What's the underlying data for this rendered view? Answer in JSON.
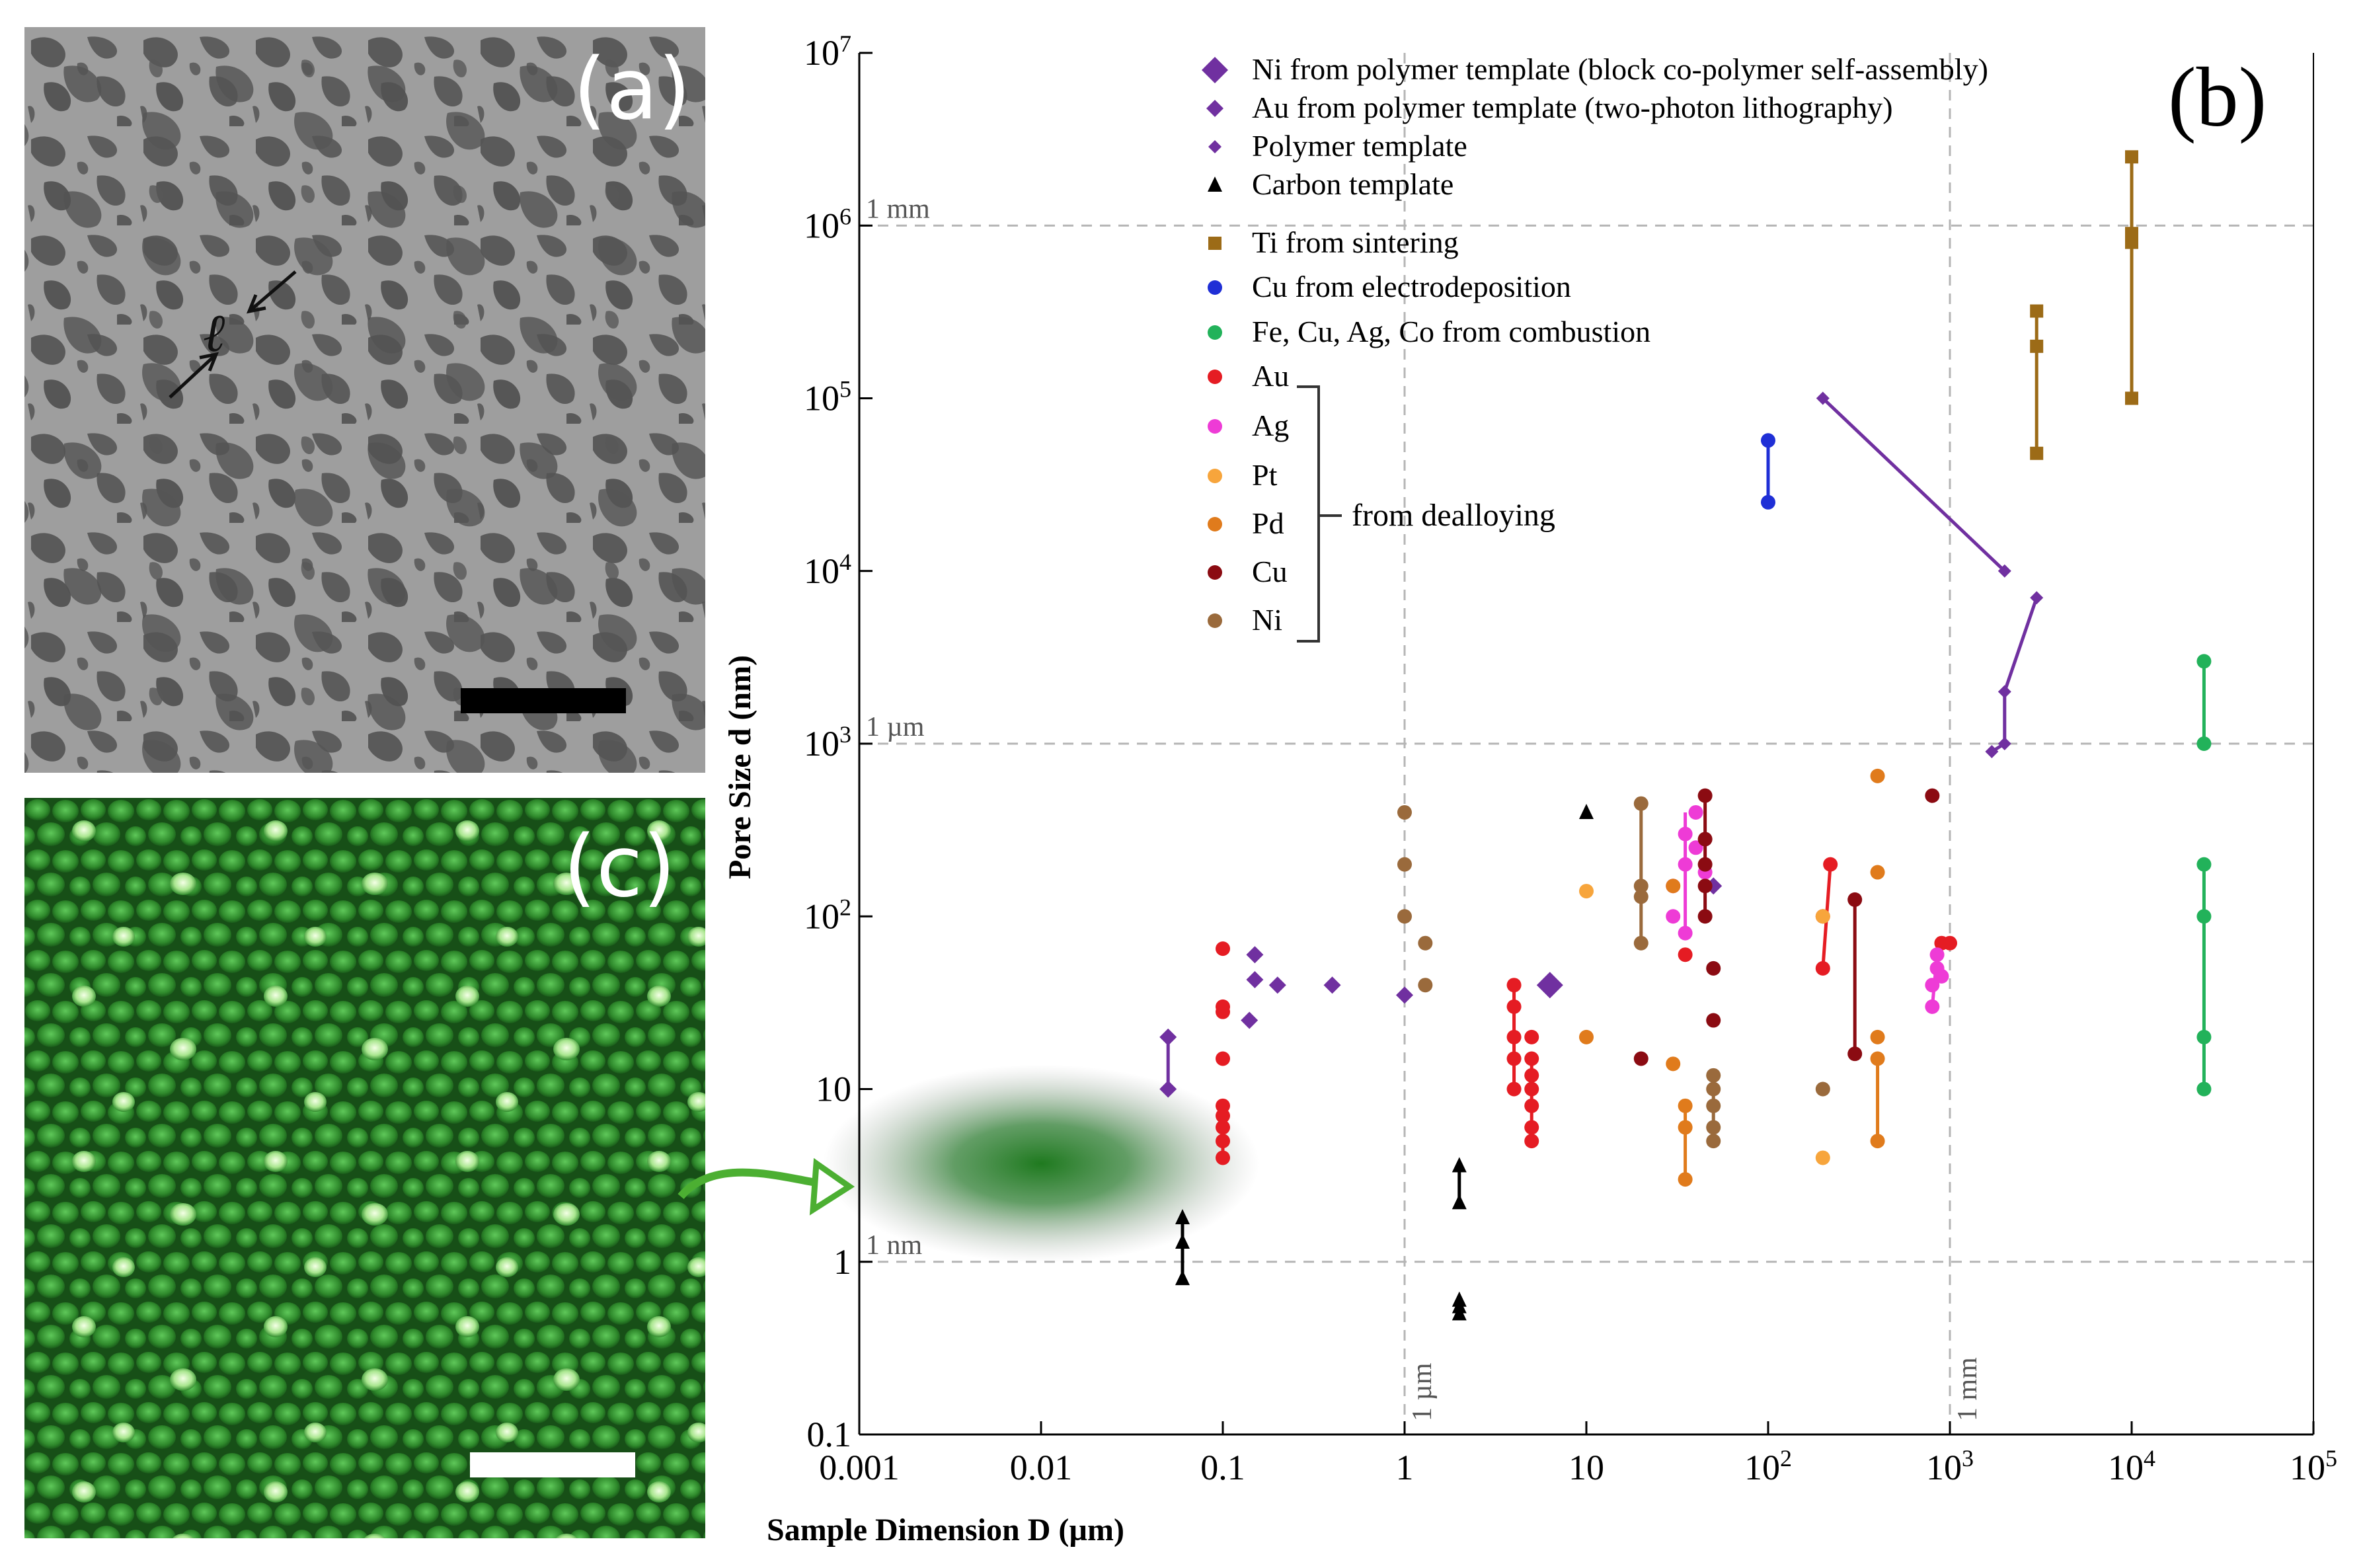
{
  "panels": {
    "a_label": "(a)",
    "b_label": "(b)",
    "c_label": "(c)",
    "a_annotation": "ℓ"
  },
  "colors": {
    "sem_background": "#9c9c9c",
    "sem_pore": "#4a4a4a",
    "afm_background": "#1f6b1f",
    "ni_polymer": "#7030a0",
    "carbon": "#000000",
    "ti": "#9c6b17",
    "cu_electro": "#1f2fd6",
    "combustion": "#22b25a",
    "au": "#e51c23",
    "ag": "#ee3bd6",
    "pt": "#f7a53c",
    "pd": "#e07b1c",
    "cu": "#8b0b12",
    "ni": "#9a6a3c",
    "gridline": "#b5b5b5",
    "arrow": "#4caf32"
  },
  "chart_data": {
    "type": "scatter",
    "xscale": "log",
    "yscale": "log",
    "xlim": [
      0.001,
      100000
    ],
    "ylim": [
      0.1,
      10000000
    ],
    "xlabel": "Sample Dimension D (µm)",
    "ylabel": "Pore Size d (nm)",
    "x_ticks": [
      {
        "base": "0.001",
        "exp": ""
      },
      {
        "base": "0.01",
        "exp": ""
      },
      {
        "base": "0.1",
        "exp": ""
      },
      {
        "base": "1",
        "exp": ""
      },
      {
        "base": "10",
        "exp": ""
      },
      {
        "base": "10",
        "exp": "2"
      },
      {
        "base": "10",
        "exp": "3"
      },
      {
        "base": "10",
        "exp": "4"
      },
      {
        "base": "10",
        "exp": "5"
      }
    ],
    "y_ticks": [
      {
        "base": "0.1",
        "exp": ""
      },
      {
        "base": "1",
        "exp": ""
      },
      {
        "base": "10",
        "exp": ""
      },
      {
        "base": "10",
        "exp": "2"
      },
      {
        "base": "10",
        "exp": "3"
      },
      {
        "base": "10",
        "exp": "4"
      },
      {
        "base": "10",
        "exp": "5"
      },
      {
        "base": "10",
        "exp": "6"
      },
      {
        "base": "10",
        "exp": "7"
      }
    ],
    "reference_lines": {
      "horizontal": [
        {
          "value": 1,
          "label": "1 nm"
        },
        {
          "value": 1000,
          "label": "1 µm"
        },
        {
          "value": 1000000,
          "label": "1 mm"
        }
      ],
      "vertical": [
        {
          "value": 1,
          "label": "1 µm"
        },
        {
          "value": 1000,
          "label": "1 mm"
        }
      ]
    },
    "bracket_label": "from dealloying",
    "legend": [
      {
        "label": "Ni from polymer template (block co-polymer self-assembly)",
        "marker": "diamond-large",
        "color": "#7030a0"
      },
      {
        "label": "Au from polymer template (two-photon lithography)",
        "marker": "diamond",
        "color": "#7030a0"
      },
      {
        "label": "Polymer template",
        "marker": "diamond-small",
        "color": "#7030a0"
      },
      {
        "label": "Carbon template",
        "marker": "triangle",
        "color": "#000000"
      },
      {
        "label": "Ti from sintering",
        "marker": "square",
        "color": "#9c6b17"
      },
      {
        "label": "Cu from electrodeposition",
        "marker": "circle",
        "color": "#1f2fd6"
      },
      {
        "label": "Fe, Cu, Ag, Co from combustion",
        "marker": "circle",
        "color": "#22b25a"
      },
      {
        "label": "Au",
        "marker": "circle",
        "color": "#e51c23"
      },
      {
        "label": "Ag",
        "marker": "circle",
        "color": "#ee3bd6"
      },
      {
        "label": "Pt",
        "marker": "circle",
        "color": "#f7a53c"
      },
      {
        "label": "Pd",
        "marker": "circle",
        "color": "#e07b1c"
      },
      {
        "label": "Cu",
        "marker": "circle",
        "color": "#8b0b12"
      },
      {
        "label": "Ni",
        "marker": "circle",
        "color": "#9a6a3c"
      }
    ],
    "highlight_region": {
      "x": 0.01,
      "y": 3.7,
      "color": "#1f6b1f"
    },
    "series": [
      {
        "name": "Ni from polymer template",
        "marker": "diamond-large",
        "color": "#7030a0",
        "points": [
          [
            6.3,
            40
          ]
        ],
        "segments": []
      },
      {
        "name": "Au from polymer template",
        "marker": "diamond",
        "color": "#7030a0",
        "points": [
          [
            0.05,
            10
          ],
          [
            0.05,
            20
          ],
          [
            0.15,
            60
          ],
          [
            0.15,
            43
          ],
          [
            0.14,
            25
          ],
          [
            0.2,
            40
          ],
          [
            0.4,
            40
          ],
          [
            1.0,
            35
          ],
          [
            50,
            150
          ]
        ],
        "segments": [
          [
            [
              0.05,
              10
            ],
            [
              0.05,
              20
            ]
          ]
        ]
      },
      {
        "name": "Polymer template",
        "marker": "diamond-small",
        "color": "#7030a0",
        "points": [
          [
            200,
            100000
          ],
          [
            2000,
            10000
          ],
          [
            3000,
            7000
          ],
          [
            2000,
            2000
          ],
          [
            2000,
            1000
          ],
          [
            1700,
            900
          ]
        ],
        "segments": [
          [
            [
              200,
              100000
            ],
            [
              2000,
              10000
            ]
          ],
          [
            [
              3000,
              7000
            ],
            [
              2000,
              2000
            ]
          ],
          [
            [
              2000,
              2000
            ],
            [
              2000,
              1000
            ]
          ],
          [
            [
              2000,
              1000
            ],
            [
              1700,
              900
            ]
          ]
        ]
      },
      {
        "name": "Carbon template",
        "marker": "triangle",
        "color": "#000000",
        "points": [
          [
            0.06,
            0.8
          ],
          [
            0.06,
            1.3
          ],
          [
            0.06,
            1.8
          ],
          [
            2,
            2.2
          ],
          [
            2,
            3.6
          ],
          [
            2,
            0.5
          ],
          [
            2,
            0.55
          ],
          [
            2,
            0.6
          ],
          [
            10,
            400
          ]
        ],
        "segments": [
          [
            [
              0.06,
              0.8
            ],
            [
              0.06,
              1.8
            ]
          ],
          [
            [
              2,
              2.2
            ],
            [
              2,
              3.6
            ]
          ]
        ]
      },
      {
        "name": "Ti from sintering",
        "marker": "square",
        "color": "#9c6b17",
        "points": [
          [
            3000,
            48000
          ],
          [
            3000,
            200000
          ],
          [
            3000,
            320000
          ],
          [
            10000,
            100000
          ],
          [
            10000,
            800000
          ],
          [
            10000,
            900000
          ],
          [
            10000,
            2500000
          ]
        ],
        "segments": [
          [
            [
              3000,
              48000
            ],
            [
              3000,
              320000
            ]
          ],
          [
            [
              10000,
              100000
            ],
            [
              10000,
              2500000
            ]
          ]
        ]
      },
      {
        "name": "Cu from electrodeposition",
        "marker": "circle",
        "color": "#1f2fd6",
        "points": [
          [
            100,
            25000
          ],
          [
            100,
            57000
          ]
        ],
        "segments": [
          [
            [
              100,
              25000
            ],
            [
              100,
              57000
            ]
          ]
        ]
      },
      {
        "name": "Fe, Cu, Ag, Co from combustion",
        "marker": "circle",
        "color": "#22b25a",
        "points": [
          [
            25000,
            10
          ],
          [
            25000,
            20
          ],
          [
            25000,
            100
          ],
          [
            25000,
            200
          ],
          [
            25000,
            1000
          ],
          [
            25000,
            3000
          ]
        ],
        "segments": [
          [
            [
              25000,
              10
            ],
            [
              25000,
              200
            ]
          ],
          [
            [
              25000,
              1000
            ],
            [
              25000,
              3000
            ]
          ]
        ]
      },
      {
        "name": "Au",
        "marker": "circle",
        "color": "#e51c23",
        "points": [
          [
            0.1,
            4
          ],
          [
            0.1,
            5
          ],
          [
            0.1,
            6
          ],
          [
            0.1,
            7
          ],
          [
            0.1,
            8
          ],
          [
            0.1,
            15
          ],
          [
            0.1,
            28
          ],
          [
            0.1,
            30
          ],
          [
            0.1,
            65
          ],
          [
            4,
            10
          ],
          [
            4,
            15
          ],
          [
            4,
            20
          ],
          [
            4,
            30
          ],
          [
            4,
            40
          ],
          [
            5,
            5
          ],
          [
            5,
            6
          ],
          [
            5,
            8
          ],
          [
            5,
            10
          ],
          [
            5,
            12
          ],
          [
            5,
            15
          ],
          [
            5,
            20
          ],
          [
            35,
            60
          ],
          [
            200,
            100
          ],
          [
            200,
            50
          ],
          [
            220,
            200
          ],
          [
            900,
            70
          ],
          [
            1000,
            70
          ]
        ],
        "segments": [
          [
            [
              0.1,
              4
            ],
            [
              0.1,
              8
            ]
          ],
          [
            [
              4,
              10
            ],
            [
              4,
              40
            ]
          ],
          [
            [
              5,
              5
            ],
            [
              5,
              15
            ]
          ],
          [
            [
              200,
              50
            ],
            [
              220,
              200
            ]
          ]
        ]
      },
      {
        "name": "Ag",
        "marker": "circle",
        "color": "#ee3bd6",
        "points": [
          [
            30,
            100
          ],
          [
            30,
            150
          ],
          [
            35,
            200
          ],
          [
            35,
            300
          ],
          [
            40,
            400
          ],
          [
            40,
            250
          ],
          [
            45,
            180
          ],
          [
            35,
            80
          ],
          [
            800,
            30
          ],
          [
            800,
            40
          ],
          [
            850,
            50
          ],
          [
            850,
            60
          ],
          [
            900,
            45
          ]
        ],
        "segments": [
          [
            [
              35,
              80
            ],
            [
              35,
              400
            ]
          ],
          [
            [
              800,
              30
            ],
            [
              850,
              60
            ]
          ]
        ]
      },
      {
        "name": "Pt",
        "marker": "circle",
        "color": "#f7a53c",
        "points": [
          [
            200,
            4
          ],
          [
            200,
            100
          ],
          [
            10,
            140
          ]
        ],
        "segments": []
      },
      {
        "name": "Pd",
        "marker": "circle",
        "color": "#e07b1c",
        "points": [
          [
            10,
            20
          ],
          [
            30,
            150
          ],
          [
            30,
            14
          ],
          [
            35,
            8
          ],
          [
            35,
            6
          ],
          [
            35,
            3
          ],
          [
            400,
            5
          ],
          [
            400,
            15
          ],
          [
            400,
            20
          ],
          [
            400,
            180
          ],
          [
            400,
            650
          ]
        ],
        "segments": [
          [
            [
              35,
              3
            ],
            [
              35,
              8
            ]
          ],
          [
            [
              400,
              5
            ],
            [
              400,
              15
            ]
          ]
        ]
      },
      {
        "name": "Cu",
        "marker": "circle",
        "color": "#8b0b12",
        "points": [
          [
            45,
            100
          ],
          [
            45,
            150
          ],
          [
            45,
            200
          ],
          [
            45,
            280
          ],
          [
            45,
            500
          ],
          [
            50,
            50
          ],
          [
            50,
            25
          ],
          [
            20,
            15
          ],
          [
            300,
            16
          ],
          [
            300,
            125
          ],
          [
            800,
            500
          ]
        ],
        "segments": [
          [
            [
              45,
              100
            ],
            [
              45,
              500
            ]
          ],
          [
            [
              300,
              16
            ],
            [
              300,
              125
            ]
          ]
        ]
      },
      {
        "name": "Ni",
        "marker": "circle",
        "color": "#9a6a3c",
        "points": [
          [
            1.0,
            100
          ],
          [
            1.0,
            200
          ],
          [
            1.0,
            400
          ],
          [
            1.3,
            70
          ],
          [
            1.3,
            40
          ],
          [
            20,
            70
          ],
          [
            20,
            130
          ],
          [
            20,
            150
          ],
          [
            20,
            450
          ],
          [
            50,
            5
          ],
          [
            50,
            6
          ],
          [
            50,
            8
          ],
          [
            50,
            10
          ],
          [
            50,
            12
          ],
          [
            200,
            10
          ]
        ],
        "segments": [
          [
            [
              20,
              70
            ],
            [
              20,
              450
            ]
          ],
          [
            [
              50,
              5
            ],
            [
              50,
              12
            ]
          ]
        ]
      }
    ]
  }
}
